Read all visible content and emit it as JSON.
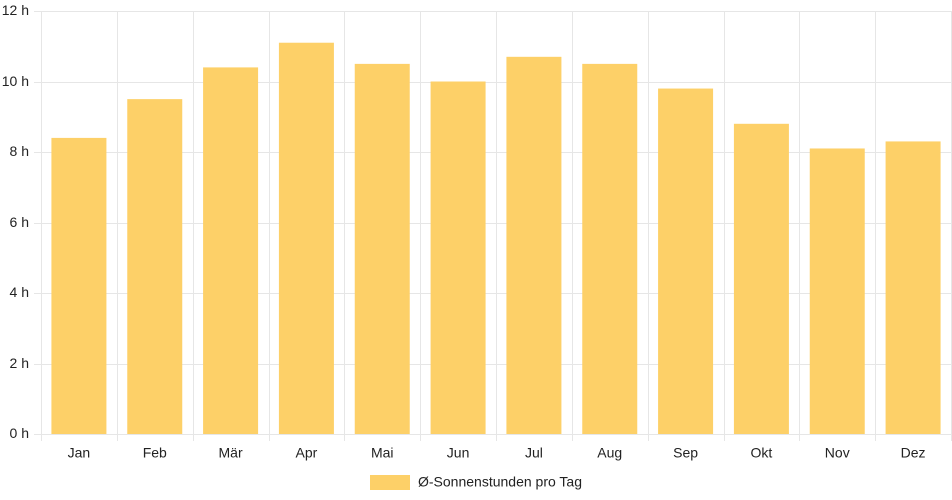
{
  "chart_data": {
    "type": "bar",
    "categories": [
      "Jan",
      "Feb",
      "Mär",
      "Apr",
      "Mai",
      "Jun",
      "Jul",
      "Aug",
      "Sep",
      "Okt",
      "Nov",
      "Dez"
    ],
    "series": [
      {
        "name": "Ø-Sonnenstunden pro Tag",
        "values": [
          8.4,
          9.5,
          10.4,
          11.1,
          10.5,
          10.0,
          10.7,
          10.5,
          9.8,
          8.8,
          8.1,
          8.3
        ],
        "color": "#fdd068"
      }
    ],
    "ylim": [
      0,
      12
    ],
    "y_ticks": [
      "0 h",
      "2 h",
      "4 h",
      "6 h",
      "8 h",
      "10 h",
      "12 h"
    ],
    "y_tick_values": [
      0,
      2,
      4,
      6,
      8,
      10,
      12
    ],
    "grid": true,
    "legend_position": "bottom-center"
  }
}
